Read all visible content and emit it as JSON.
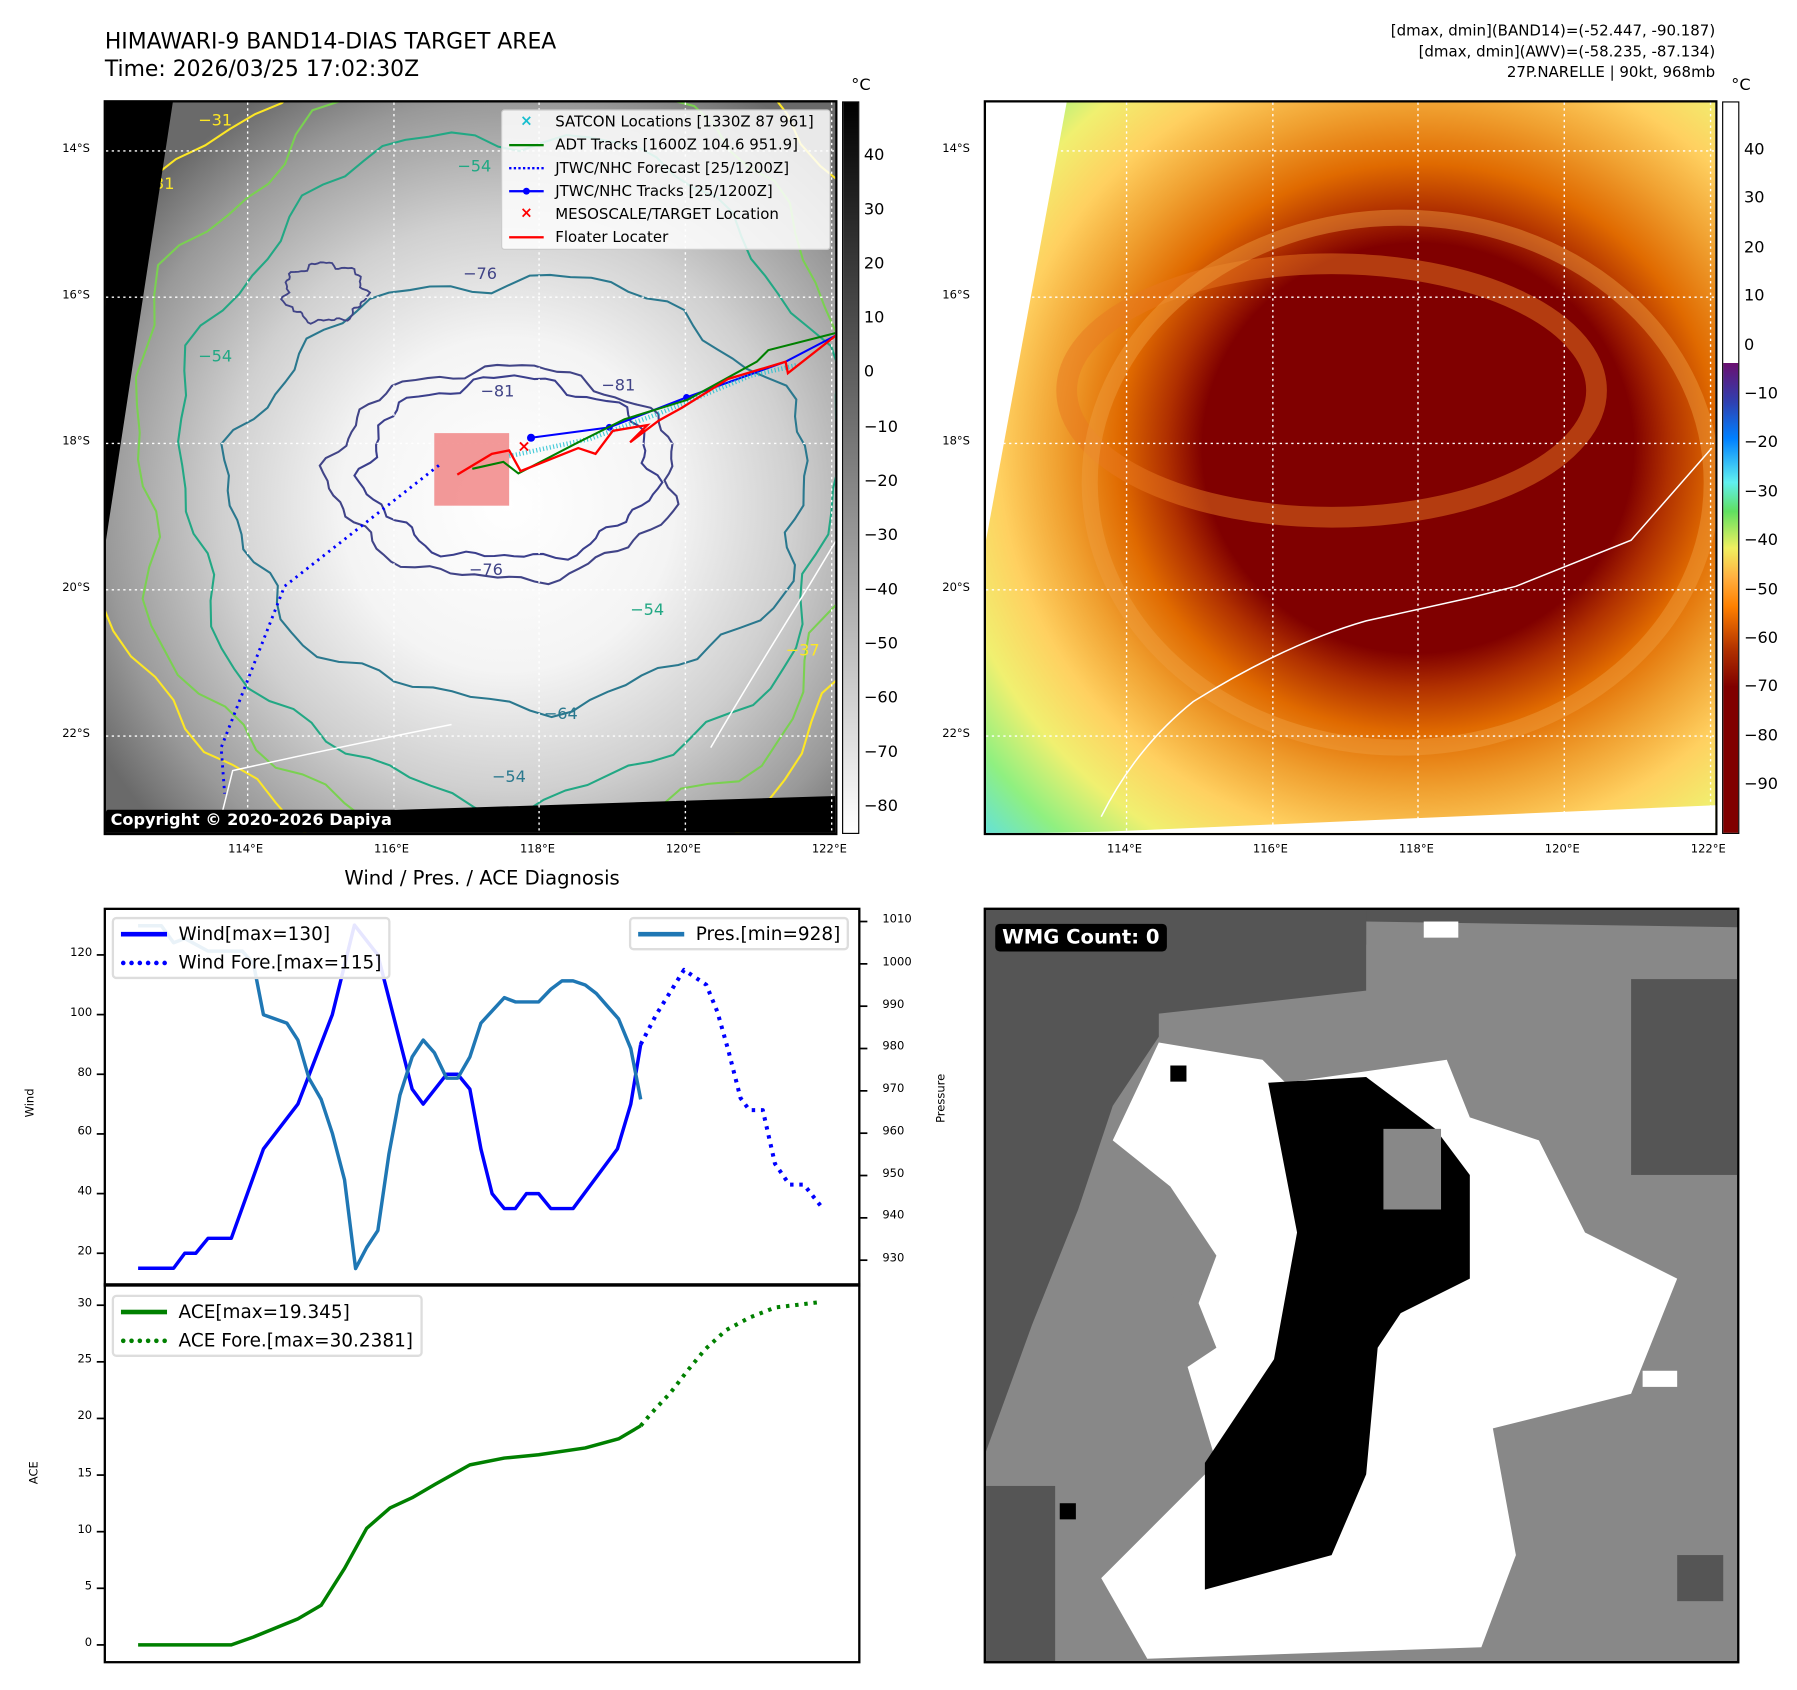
{
  "header": {
    "title": "HIMAWARI-9 BAND14-DIAS TARGET AREA",
    "time": "Time: 2026/03/25 17:02:30Z",
    "stats_band14": "[dmax, dmin](BAND14)=(-52.447, -90.187)",
    "stats_awv": "[dmax, dmin](AWV)=(-58.235, -87.134)",
    "storm": "27P.NARELLE | 90kt, 968mb"
  },
  "map_axes": {
    "lat_labels": [
      "14°S",
      "16°S",
      "18°S",
      "20°S",
      "22°S"
    ],
    "lon_labels": [
      "114°E",
      "116°E",
      "118°E",
      "120°E",
      "122°E"
    ]
  },
  "left_map": {
    "colorbar_unit": "°C",
    "colorbar_ticks": [
      "40",
      "30",
      "20",
      "10",
      "0",
      "−10",
      "−20",
      "−30",
      "−40",
      "−50",
      "−60",
      "−70",
      "−80"
    ],
    "colorbar_range": [
      -85,
      50
    ],
    "legend": [
      "SATCON Locations [1330Z 87 961]",
      "ADT Tracks [1600Z 104.6 951.9]",
      "JTWC/NHC Forecast [25/1200Z]",
      "JTWC/NHC Tracks [25/1200Z]",
      "MESOSCALE/TARGET Location",
      "Floater Locater"
    ],
    "contour_labels": [
      "−31",
      "−31",
      "−54",
      "−54",
      "−54",
      "−54",
      "−76",
      "−76",
      "−81",
      "−81",
      "−64",
      "−37"
    ],
    "copyright": "Copyright © 2020-2026 Dapiya"
  },
  "right_map": {
    "colorbar_unit": "°C",
    "colorbar_ticks": [
      "40",
      "30",
      "20",
      "10",
      "0",
      "−10",
      "−20",
      "−30",
      "−40",
      "−50",
      "−60",
      "−70",
      "−80",
      "−90"
    ],
    "colorbar_range": [
      -100,
      50
    ]
  },
  "wmg": {
    "label": "WMG Count: 0"
  },
  "colors": {
    "wind": "#0000ff",
    "pressure": "#1f77b4",
    "ace": "#008000",
    "satcon": "#17becf",
    "adt": "#008000",
    "track": "#0000ff",
    "floater": "#ff0000"
  },
  "chart_data": [
    {
      "type": "line",
      "title": "Wind / Pres. / ACE Diagnosis",
      "xlabel": "",
      "ylabel": "Wind",
      "ylabel_right": "Pressure",
      "ylim": [
        9,
        136
      ],
      "ylim_right": [
        923,
        1013
      ],
      "xlim": [
        -3,
        65
      ],
      "yticks": [
        "20",
        "40",
        "60",
        "80",
        "100",
        "120"
      ],
      "yticks_right": [
        "930",
        "940",
        "950",
        "960",
        "970",
        "980",
        "990",
        "1000",
        "1010"
      ],
      "legend_left": [
        "Wind[max=130]",
        "Wind Fore.[max=115]"
      ],
      "legend_right": [
        "Pres.[min=928]"
      ],
      "series": [
        {
          "name": "Wind[max=130]",
          "axis": "left",
          "style": "solid",
          "x": [
            0,
            3.2,
            4.2,
            5.2,
            6.3,
            8.4,
            11.3,
            14.4,
            17.5,
            19.5,
            21.6,
            24.7,
            25.7,
            27.8,
            28.8,
            29.9,
            30.9,
            31.9,
            33,
            34,
            35,
            36.1,
            37.2,
            39.2,
            43.2,
            44.4,
            45.3
          ],
          "y": [
            15,
            15,
            20,
            20,
            25,
            25,
            55,
            70,
            100,
            130,
            120,
            75,
            70,
            80,
            80,
            75,
            55,
            40,
            35,
            35,
            40,
            40,
            35,
            35,
            55,
            70,
            90
          ]
        },
        {
          "name": "Wind Fore.[max=115]",
          "axis": "left",
          "style": "dotted",
          "x": [
            45.3,
            46.7,
            49.2,
            51.2,
            52.2,
            53.2,
            54.3,
            55.1,
            56.3,
            57.4,
            58.7,
            60,
            61.5
          ],
          "y": [
            90,
            100,
            115,
            110,
            101,
            88,
            72,
            68,
            68,
            50,
            43,
            43,
            36
          ]
        },
        {
          "name": "Pres.[min=928]",
          "axis": "right",
          "style": "solid",
          "x": [
            0,
            2.1,
            3.2,
            4.2,
            6.3,
            9.4,
            10.4,
            11.3,
            13.4,
            14.4,
            15.4,
            16.5,
            17.5,
            18.6,
            19.6,
            20.6,
            21.6,
            22.6,
            23.6,
            24.7,
            25.7,
            26.7,
            27.8,
            28.8,
            29.9,
            30.9,
            33,
            34,
            36.1,
            37.2,
            38.2,
            39.2,
            40.3,
            41.3,
            42.3,
            43.3,
            44.4,
            45.3
          ],
          "y": [
            1009,
            1009,
            1005,
            1006,
            1003,
            1003,
            1000,
            988,
            986,
            982,
            973,
            968,
            960,
            949,
            928,
            933,
            937,
            955,
            969,
            978,
            982,
            979,
            973,
            973,
            978,
            986,
            992,
            991,
            991,
            994,
            996,
            996,
            995,
            993,
            990,
            987,
            980,
            968
          ]
        }
      ]
    },
    {
      "type": "line",
      "title": "",
      "xlabel": "",
      "ylabel": "ACE",
      "ylim": [
        -1,
        31.5
      ],
      "xlim": [
        -3,
        65
      ],
      "yticks": [
        "0",
        "5",
        "10",
        "15",
        "20",
        "25",
        "30"
      ],
      "legend": [
        "ACE[max=19.345]",
        "ACE Fore.[max=30.2381]"
      ],
      "series": [
        {
          "name": "ACE[max=19.345]",
          "style": "solid",
          "x": [
            0,
            8.4,
            10.4,
            14.4,
            16.5,
            18.6,
            20.6,
            22.7,
            24.7,
            26.8,
            29.9,
            33,
            36.1,
            40.3,
            43.3,
            45.3
          ],
          "y": [
            0,
            0,
            0.7,
            2.3,
            3.5,
            6.75,
            10.3,
            12.1,
            13,
            14.2,
            15.9,
            16.5,
            16.8,
            17.4,
            18.2,
            19.35
          ]
        },
        {
          "name": "ACE Fore.[max=30.2381]",
          "style": "dotted",
          "x": [
            45.3,
            46.2,
            48,
            49.5,
            51.1,
            53,
            55.1,
            57.4,
            61.2
          ],
          "y": [
            19.35,
            20.4,
            22.3,
            24.2,
            26.1,
            27.8,
            28.9,
            29.8,
            30.24
          ]
        }
      ]
    }
  ]
}
